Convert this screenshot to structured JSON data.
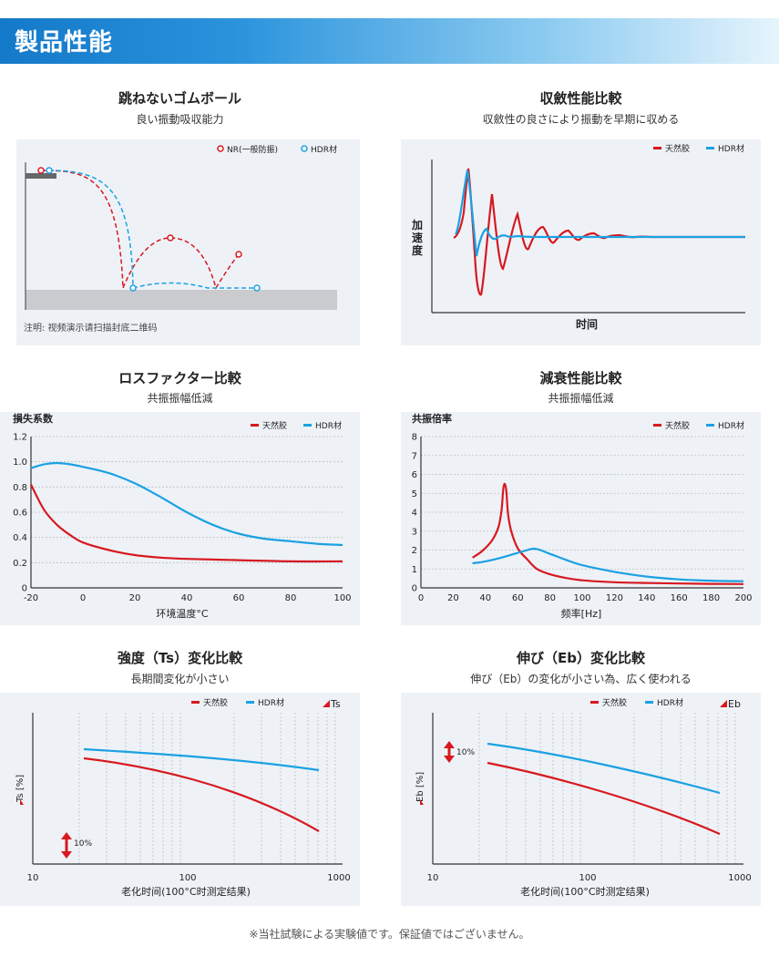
{
  "header": {
    "title": "製品性能"
  },
  "panels": {
    "p1": {
      "title": "跳ねないゴムボール",
      "subtitle": "良い振動吸収能力",
      "legend_nr": "NR(一般防振)",
      "legend_hdr": "HDR材",
      "note": "注明: 视频演示请扫描封底二维码"
    },
    "p2": {
      "title": "収斂性能比較",
      "subtitle": "収斂性の良さにより振動を早期に収める",
      "legend_a": "天然胶",
      "legend_b": "HDR材",
      "ylabel": "加速度",
      "xlabel": "时间"
    },
    "p3": {
      "title": "ロスファクター比較",
      "subtitle": "共振振幅低減",
      "legend_a": "天然胶",
      "legend_b": "HDR材",
      "ylabel": "損失系数",
      "xlabel": "环境温度°C"
    },
    "p4": {
      "title": "減衰性能比較",
      "subtitle": "共振振幅低減",
      "legend_a": "天然胶",
      "legend_b": "HDR材",
      "ylabel": "共振倍率",
      "xlabel": "频率[Hz]"
    },
    "p5": {
      "title": "強度（Ts）変化比較",
      "subtitle": "長期間変化が小さい",
      "legend_a": "天然胶",
      "legend_b": "HDR材",
      "legend_c": "Ts",
      "ylabel": "Ts [%]",
      "xlabel": "老化时间(100°C时测定结果)",
      "scale_label": "10%"
    },
    "p6": {
      "title": "伸び（Eb）変化比較",
      "subtitle": "伸び（Eb）の変化が小さい為、広く使われる",
      "legend_a": "天然胶",
      "legend_b": "HDR材",
      "legend_c": "Eb",
      "ylabel": "Eb [%]",
      "xlabel": "老化时间(100°C时测定结果)",
      "scale_label": "10%"
    }
  },
  "footer": {
    "note": "※当社試験による実験値です。保証値ではございません。"
  },
  "colors": {
    "natural": "#d7191f",
    "hdr": "#1ba1e2",
    "panel": "#eef2f7",
    "grid": "#b8bec6"
  },
  "chart_data": [
    {
      "type": "line",
      "title": "ロスファクター比較",
      "xlabel": "环境温度°C",
      "ylabel": "損失系数",
      "xlim": [
        -20,
        100
      ],
      "ylim": [
        0,
        1.2
      ],
      "xticks": [
        -20,
        0,
        20,
        40,
        60,
        80,
        100
      ],
      "yticks": [
        0,
        0.2,
        0.4,
        0.6,
        0.8,
        1.0,
        1.2
      ],
      "ytick_labels": [
        "0",
        "0.2",
        "0.4",
        "0.6",
        "0.8",
        "1.0",
        "1.2"
      ],
      "series": [
        {
          "name": "天然胶",
          "x": [
            -20,
            -15,
            -10,
            -5,
            0,
            10,
            20,
            30,
            40,
            60,
            80,
            100
          ],
          "values": [
            0.82,
            0.62,
            0.5,
            0.42,
            0.36,
            0.3,
            0.26,
            0.24,
            0.23,
            0.22,
            0.21,
            0.21
          ]
        },
        {
          "name": "HDR材",
          "x": [
            -20,
            -15,
            -10,
            -5,
            0,
            10,
            20,
            30,
            40,
            50,
            60,
            70,
            80,
            90,
            100
          ],
          "values": [
            0.95,
            0.98,
            0.99,
            0.98,
            0.96,
            0.91,
            0.83,
            0.72,
            0.6,
            0.5,
            0.43,
            0.39,
            0.37,
            0.35,
            0.34
          ]
        }
      ]
    },
    {
      "type": "line",
      "title": "減衰性能比較",
      "xlabel": "频率[Hz]",
      "ylabel": "共振倍率",
      "xlim": [
        0,
        200
      ],
      "ylim": [
        0,
        8
      ],
      "xticks": [
        0,
        20,
        40,
        60,
        80,
        100,
        120,
        140,
        160,
        180,
        200
      ],
      "yticks": [
        0,
        1,
        2,
        3,
        4,
        5,
        6,
        7,
        8
      ],
      "series": [
        {
          "name": "天然胶",
          "x": [
            32,
            38,
            44,
            48,
            50,
            51,
            52,
            53,
            54,
            56,
            60,
            66,
            72,
            80,
            90,
            100,
            120,
            140,
            160,
            180,
            200
          ],
          "values": [
            1.6,
            1.95,
            2.5,
            3.2,
            4.1,
            5.2,
            5.5,
            5.1,
            3.9,
            3.0,
            2.1,
            1.5,
            1.0,
            0.72,
            0.52,
            0.4,
            0.3,
            0.26,
            0.23,
            0.21,
            0.2
          ]
        },
        {
          "name": "HDR材",
          "x": [
            32,
            40,
            50,
            60,
            66,
            70,
            74,
            80,
            90,
            100,
            120,
            140,
            160,
            180,
            200
          ],
          "values": [
            1.3,
            1.4,
            1.6,
            1.85,
            2.0,
            2.07,
            2.0,
            1.8,
            1.48,
            1.2,
            0.85,
            0.6,
            0.45,
            0.38,
            0.35
          ]
        }
      ]
    }
  ]
}
